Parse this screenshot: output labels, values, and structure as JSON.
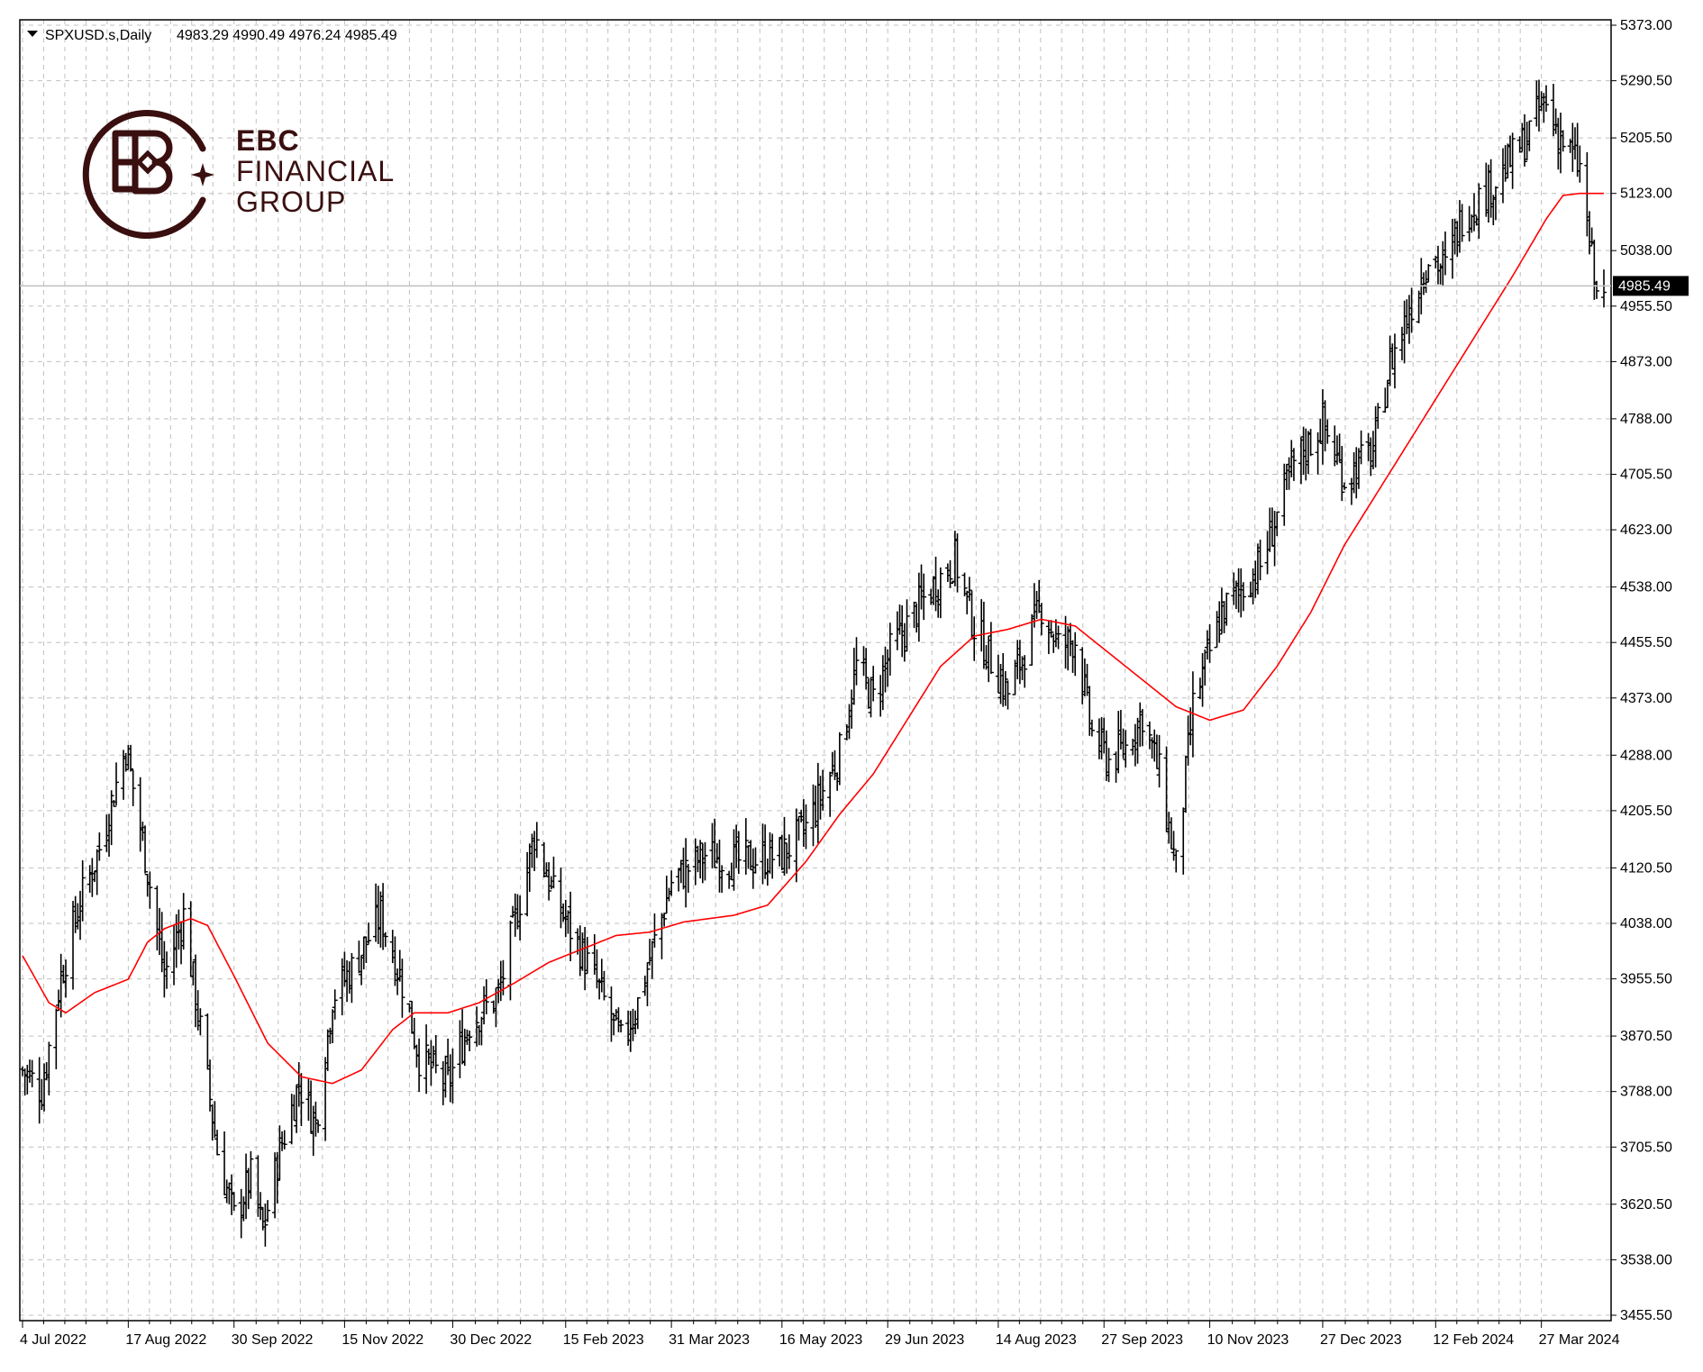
{
  "header": {
    "symbol": "SPXUSD.s,Daily",
    "ohlc": "4983.29 4990.49 4976.24 4985.49"
  },
  "logo": {
    "line1": "EBC",
    "line2": "FINANCIAL",
    "line3": "GROUP"
  },
  "colors": {
    "bars": "#000000",
    "moving_average": "#ff0000",
    "grid": "#c0c0c0",
    "logo": "#3a0f0f",
    "current_price_line": "#c0c0c0"
  },
  "chart_data": {
    "type": "ohlc",
    "title": "",
    "ylim": [
      3455.5,
      5373.0
    ],
    "y_ticks": [
      "5373.00",
      "5290.50",
      "5205.50",
      "5123.00",
      "5038.00",
      "4955.50",
      "4873.00",
      "4788.00",
      "4705.50",
      "4623.00",
      "4538.00",
      "4455.50",
      "4373.00",
      "4288.00",
      "4205.50",
      "4120.50",
      "4038.00",
      "3955.50",
      "3870.50",
      "3788.00",
      "3705.50",
      "3620.50",
      "3538.00",
      "3455.50"
    ],
    "x_ticks": [
      "4 Jul 2022",
      "17 Aug 2022",
      "30 Sep 2022",
      "15 Nov 2022",
      "30 Dec 2022",
      "15 Feb 2023",
      "31 Mar 2023",
      "16 May 2023",
      "29 Jun 2023",
      "14 Aug 2023",
      "27 Sep 2023",
      "10 Nov 2023",
      "27 Dec 2023",
      "12 Feb 2024",
      "27 Mar 2024"
    ],
    "current_price": 4985.49,
    "current_price_label": "4985.49",
    "grid": true,
    "series": [
      {
        "kind": "close",
        "anchors": [
          [
            "4 Jul 2022",
            3820
          ],
          [
            "12 Jul 2022",
            3790
          ],
          [
            "20 Jul 2022",
            3960
          ],
          [
            "28 Jul 2022",
            4070
          ],
          [
            "5 Aug 2022",
            4150
          ],
          [
            "16 Aug 2022",
            4300
          ],
          [
            "24 Aug 2022",
            4140
          ],
          [
            "1 Sep 2022",
            3960
          ],
          [
            "9 Sep 2022",
            4050
          ],
          [
            "16 Sep 2022",
            3880
          ],
          [
            "23 Sep 2022",
            3700
          ],
          [
            "30 Sep 2022",
            3600
          ],
          [
            "7 Oct 2022",
            3660
          ],
          [
            "12 Oct 2022",
            3580
          ],
          [
            "19 Oct 2022",
            3700
          ],
          [
            "27 Oct 2022",
            3800
          ],
          [
            "3 Nov 2022",
            3740
          ],
          [
            "10 Nov 2022",
            3930
          ],
          [
            "18 Nov 2022",
            3970
          ],
          [
            "30 Nov 2022",
            4050
          ],
          [
            "9 Dec 2022",
            3950
          ],
          [
            "16 Dec 2022",
            3840
          ],
          [
            "28 Dec 2022",
            3800
          ],
          [
            "6 Jan 2023",
            3890
          ],
          [
            "18 Jan 2023",
            3930
          ],
          [
            "2 Feb 2023",
            4170
          ],
          [
            "10 Feb 2023",
            4080
          ],
          [
            "21 Feb 2023",
            4000
          ],
          [
            "1 Mar 2023",
            3940
          ],
          [
            "10 Mar 2023",
            3860
          ],
          [
            "17 Mar 2023",
            3920
          ],
          [
            "31 Mar 2023",
            4100
          ],
          [
            "14 Apr 2023",
            4140
          ],
          [
            "28 Apr 2023",
            4130
          ],
          [
            "16 May 2023",
            4140
          ],
          [
            "26 May 2023",
            4180
          ],
          [
            "9 Jun 2023",
            4290
          ],
          [
            "16 Jun 2023",
            4420
          ],
          [
            "23 Jun 2023",
            4370
          ],
          [
            "30 Jun 2023",
            4440
          ],
          [
            "14 Jul 2023",
            4520
          ],
          [
            "27 Jul 2023",
            4580
          ],
          [
            "4 Aug 2023",
            4480
          ],
          [
            "18 Aug 2023",
            4380
          ],
          [
            "1 Sep 2023",
            4510
          ],
          [
            "8 Sep 2023",
            4450
          ],
          [
            "15 Sep 2023",
            4460
          ],
          [
            "22 Sep 2023",
            4320
          ],
          [
            "29 Sep 2023",
            4280
          ],
          [
            "6 Oct 2023",
            4300
          ],
          [
            "13 Oct 2023",
            4350
          ],
          [
            "20 Oct 2023",
            4260
          ],
          [
            "27 Oct 2023",
            4120
          ],
          [
            "3 Nov 2023",
            4360
          ],
          [
            "15 Nov 2023",
            4500
          ],
          [
            "1 Dec 2023",
            4570
          ],
          [
            "15 Dec 2023",
            4720
          ],
          [
            "27 Dec 2023",
            4780
          ],
          [
            "5 Jan 2024",
            4700
          ],
          [
            "17 Jan 2024",
            4740
          ],
          [
            "24 Jan 2024",
            4870
          ],
          [
            "2 Feb 2024",
            4960
          ],
          [
            "9 Feb 2024",
            5030
          ],
          [
            "16 Feb 2024",
            5010
          ],
          [
            "23 Feb 2024",
            5090
          ],
          [
            "8 Mar 2024",
            5140
          ],
          [
            "20 Mar 2024",
            5200
          ],
          [
            "28 Mar 2024",
            5260
          ],
          [
            "5 Apr 2024",
            5200
          ],
          [
            "12 Apr 2024",
            5160
          ],
          [
            "16 Apr 2024",
            5050
          ],
          [
            "19 Apr 2024",
            4967
          ],
          [
            "22 Apr 2024",
            4985
          ]
        ]
      },
      {
        "kind": "moving_average",
        "anchors": [
          [
            "4 Jul 2022",
            3990
          ],
          [
            "15 Jul 2022",
            3920
          ],
          [
            "22 Jul 2022",
            3905
          ],
          [
            "3 Aug 2022",
            3935
          ],
          [
            "17 Aug 2022",
            3955
          ],
          [
            "25 Aug 2022",
            4010
          ],
          [
            "1 Sep 2022",
            4030
          ],
          [
            "12 Sep 2022",
            4045
          ],
          [
            "19 Sep 2022",
            4035
          ],
          [
            "30 Sep 2022",
            3960
          ],
          [
            "14 Oct 2022",
            3860
          ],
          [
            "28 Oct 2022",
            3810
          ],
          [
            "10 Nov 2022",
            3800
          ],
          [
            "22 Nov 2022",
            3820
          ],
          [
            "5 Dec 2022",
            3880
          ],
          [
            "14 Dec 2022",
            3905
          ],
          [
            "28 Dec 2022",
            3905
          ],
          [
            "10 Jan 2023",
            3920
          ],
          [
            "25 Jan 2023",
            3950
          ],
          [
            "8 Feb 2023",
            3980
          ],
          [
            "22 Feb 2023",
            4000
          ],
          [
            "8 Mar 2023",
            4020
          ],
          [
            "22 Mar 2023",
            4025
          ],
          [
            "5 Apr 2023",
            4040
          ],
          [
            "26 Apr 2023",
            4050
          ],
          [
            "10 May 2023",
            4065
          ],
          [
            "26 May 2023",
            4130
          ],
          [
            "9 Jun 2023",
            4200
          ],
          [
            "23 Jun 2023",
            4260
          ],
          [
            "7 Jul 2023",
            4340
          ],
          [
            "21 Jul 2023",
            4420
          ],
          [
            "4 Aug 2023",
            4465
          ],
          [
            "18 Aug 2023",
            4475
          ],
          [
            "1 Sep 2023",
            4490
          ],
          [
            "15 Sep 2023",
            4480
          ],
          [
            "29 Sep 2023",
            4440
          ],
          [
            "13 Oct 2023",
            4400
          ],
          [
            "27 Oct 2023",
            4360
          ],
          [
            "10 Nov 2023",
            4340
          ],
          [
            "24 Nov 2023",
            4355
          ],
          [
            "8 Dec 2023",
            4420
          ],
          [
            "22 Dec 2023",
            4500
          ],
          [
            "5 Jan 2024",
            4600
          ],
          [
            "19 Jan 2024",
            4680
          ],
          [
            "2 Feb 2024",
            4760
          ],
          [
            "16 Feb 2024",
            4840
          ],
          [
            "1 Mar 2024",
            4920
          ],
          [
            "15 Mar 2024",
            5000
          ],
          [
            "29 Mar 2024",
            5085
          ],
          [
            "5 Apr 2024",
            5120
          ],
          [
            "12 Apr 2024",
            5123
          ],
          [
            "22 Apr 2024",
            5123
          ]
        ]
      }
    ]
  }
}
